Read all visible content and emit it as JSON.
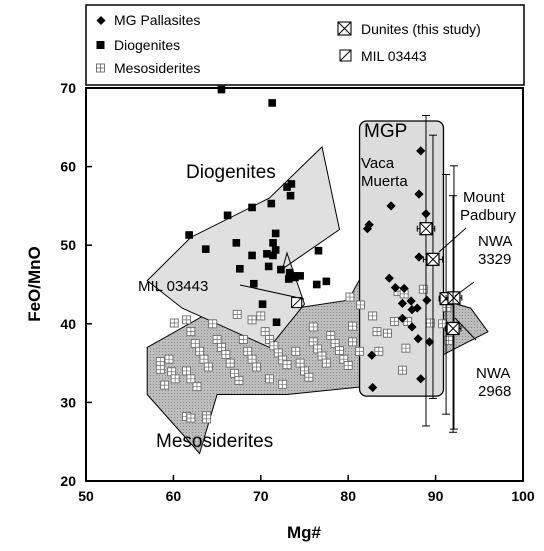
{
  "chart_data": {
    "type": "scatter",
    "xlabel": "Mg#",
    "ylabel": "FeO/MnO",
    "xlim": [
      50,
      100
    ],
    "ylim": [
      20,
      70
    ],
    "xticks": [
      "50",
      "60",
      "70",
      "80",
      "90",
      "100"
    ],
    "yticks": [
      "20",
      "30",
      "40",
      "50",
      "60",
      "70"
    ],
    "grid": false,
    "legend_position": "top",
    "legend": [
      {
        "key": "pallasites",
        "label": "MG Pallasites",
        "marker": "diamond"
      },
      {
        "key": "diogenites",
        "label": "Diogenites",
        "marker": "square"
      },
      {
        "key": "mesosiderites",
        "label": "Mesosiderites",
        "marker": "grid-square"
      },
      {
        "key": "dunites",
        "label": "Dunites (this study)",
        "marker": "crossed-square"
      },
      {
        "key": "mil",
        "label": "MIL 03443",
        "marker": "slashed-square"
      }
    ],
    "region_labels": {
      "diogenites": "Diogenites",
      "mesosiderites": "Mesosiderites",
      "mgp": "MGP",
      "vaca": [
        "Vaca",
        "Muerta"
      ],
      "mount": [
        "Mount",
        "Padbury"
      ],
      "nwa3329": [
        "NWA",
        "3329"
      ],
      "nwa2968": [
        "NWA",
        "2968"
      ],
      "mil": "MIL 03443"
    },
    "fields": {
      "diogenites": [
        [
          62,
          51
        ],
        [
          71,
          56
        ],
        [
          77,
          62.5
        ],
        [
          79,
          52
        ],
        [
          72.5,
          47
        ],
        [
          73,
          49
        ],
        [
          75,
          42.5
        ],
        [
          71,
          37
        ],
        [
          61,
          42
        ],
        [
          57,
          45.5
        ]
      ],
      "mesosiderites": [
        [
          57,
          37
        ],
        [
          65,
          42
        ],
        [
          74,
          42
        ],
        [
          80,
          43
        ],
        [
          81.5,
          46
        ],
        [
          94,
          42
        ],
        [
          96,
          39
        ],
        [
          89,
          35
        ],
        [
          86,
          32.5
        ],
        [
          73,
          31
        ],
        [
          65,
          31
        ],
        [
          63,
          23.5
        ],
        [
          57,
          31
        ]
      ],
      "mgp": {
        "x0": 81.3,
        "x1": 90.9,
        "y0": 30.8,
        "y1": 65.8
      }
    },
    "series": [
      {
        "name": "MG Pallasites",
        "marker": "diamond",
        "points": [
          [
            88.3,
            62
          ],
          [
            88.1,
            56.5
          ],
          [
            84.9,
            55
          ],
          [
            88.9,
            54
          ],
          [
            82.4,
            52.6
          ],
          [
            82.2,
            52.1
          ],
          [
            88.1,
            48.5
          ],
          [
            84.7,
            45.8
          ],
          [
            85.4,
            44.6
          ],
          [
            86.4,
            44.5
          ],
          [
            86.2,
            42.6
          ],
          [
            87.2,
            42.9
          ],
          [
            87.3,
            41.8
          ],
          [
            87.9,
            42
          ],
          [
            89,
            43
          ],
          [
            86.2,
            40.7
          ],
          [
            87.3,
            39.6
          ],
          [
            88,
            38.1
          ],
          [
            89.3,
            37.7
          ],
          [
            82.7,
            36
          ],
          [
            88.3,
            33
          ],
          [
            82.8,
            31.9
          ]
        ]
      },
      {
        "name": "Diogenites",
        "marker": "square",
        "points": [
          [
            65.5,
            69.8
          ],
          [
            71.3,
            68.1
          ],
          [
            61.8,
            51.3
          ],
          [
            66.2,
            53.8
          ],
          [
            69,
            54.8
          ],
          [
            71.2,
            55.3
          ],
          [
            73.5,
            57.8
          ],
          [
            73,
            57.4
          ],
          [
            73.4,
            56.3
          ],
          [
            63.7,
            49.5
          ],
          [
            67.2,
            50.3
          ],
          [
            69,
            48.7
          ],
          [
            70.7,
            48.9
          ],
          [
            71.4,
            48.7
          ],
          [
            71.4,
            50.3
          ],
          [
            71.7,
            49.4
          ],
          [
            71.7,
            51.5
          ],
          [
            70.9,
            47.3
          ],
          [
            72.3,
            46.9
          ],
          [
            73.3,
            46.5
          ],
          [
            73.8,
            46.1
          ],
          [
            74.5,
            46.1
          ],
          [
            76.6,
            49.3
          ],
          [
            67.6,
            47
          ],
          [
            69.2,
            45.1
          ],
          [
            73.2,
            45.7
          ],
          [
            73.9,
            45.9
          ],
          [
            70.2,
            42.5
          ],
          [
            76.4,
            45
          ],
          [
            77.5,
            45.4
          ],
          [
            71.8,
            40.2
          ]
        ]
      },
      {
        "name": "Mesosiderites",
        "marker": "grid-square",
        "points": [
          [
            58.5,
            35.2
          ],
          [
            58.5,
            34.2
          ],
          [
            59,
            32.2
          ],
          [
            59.5,
            35.5
          ],
          [
            59.8,
            33.9
          ],
          [
            60.2,
            33
          ],
          [
            61.5,
            40.5
          ],
          [
            62,
            39
          ],
          [
            62.5,
            37.5
          ],
          [
            63,
            36.5
          ],
          [
            63.5,
            35.5
          ],
          [
            64,
            34.5
          ],
          [
            61.5,
            34
          ],
          [
            62,
            33
          ],
          [
            62.7,
            32
          ],
          [
            61.5,
            28.2
          ],
          [
            62,
            28
          ],
          [
            63.8,
            28.3
          ],
          [
            63.8,
            27.9
          ],
          [
            64.5,
            40
          ],
          [
            65,
            38
          ],
          [
            65.5,
            37
          ],
          [
            66,
            36.1
          ],
          [
            66.5,
            35
          ],
          [
            67,
            33.7
          ],
          [
            67.5,
            32.8
          ],
          [
            68,
            38
          ],
          [
            68.5,
            36.5
          ],
          [
            69,
            35.5
          ],
          [
            69.5,
            34.5
          ],
          [
            69,
            40.5
          ],
          [
            70,
            41
          ],
          [
            70.5,
            39
          ],
          [
            71,
            38
          ],
          [
            71.5,
            37.2
          ],
          [
            72,
            36.3
          ],
          [
            72.5,
            35.4
          ],
          [
            73,
            34.8
          ],
          [
            71,
            33
          ],
          [
            72.5,
            32.3
          ],
          [
            74,
            36.5
          ],
          [
            74.5,
            35
          ],
          [
            75,
            34
          ],
          [
            75.5,
            33.2
          ],
          [
            76,
            37.7
          ],
          [
            76.5,
            36.8
          ],
          [
            77,
            35.9
          ],
          [
            77.5,
            35
          ],
          [
            76,
            39.6
          ],
          [
            78,
            38.5
          ],
          [
            78.5,
            37.5
          ],
          [
            79,
            36.6
          ],
          [
            79.5,
            35.5
          ],
          [
            80,
            34.7
          ],
          [
            80.5,
            37.7
          ],
          [
            81.3,
            36.5
          ],
          [
            81.4,
            42.4
          ],
          [
            80.5,
            39.7
          ],
          [
            82.8,
            41
          ],
          [
            83.3,
            39
          ],
          [
            83.5,
            36.5
          ],
          [
            84.5,
            38.8
          ],
          [
            85.3,
            40.3
          ],
          [
            85.7,
            44.1
          ],
          [
            86.4,
            43.8
          ],
          [
            86.8,
            40.3
          ],
          [
            86.6,
            36.9
          ],
          [
            88.6,
            44.4
          ],
          [
            89.4,
            40.1
          ],
          [
            90.8,
            40
          ],
          [
            91.3,
            42.1
          ],
          [
            91.5,
            37.9
          ],
          [
            86.2,
            34.1
          ],
          [
            80.2,
            43.4
          ],
          [
            60.1,
            40.1
          ],
          [
            67.3,
            41.2
          ]
        ]
      },
      {
        "name": "Dunites (this study)",
        "marker": "crossed-square",
        "points": [
          {
            "x": 88.9,
            "y": 52.1,
            "xerr": 1.0,
            "ymin": 27,
            "ymax": 66.5
          },
          {
            "x": 89.7,
            "y": 48.2,
            "xerr": 1.1,
            "ymin": 30.5,
            "ymax": 64
          },
          {
            "x": 91.2,
            "y": 43.2,
            "xerr": 0.8,
            "ymin": 28.5,
            "ymax": 59
          },
          {
            "x": 92.1,
            "y": 43.3,
            "xerr": 0.9,
            "ymin": 26.6,
            "ymax": 60.1
          },
          {
            "x": 92.0,
            "y": 39.4,
            "xerr": 0.9,
            "ymin": 26.2,
            "ymax": 56.3
          }
        ]
      },
      {
        "name": "MIL 03443",
        "marker": "slashed-square",
        "points": [
          [
            74.1,
            42.7
          ]
        ]
      }
    ]
  }
}
